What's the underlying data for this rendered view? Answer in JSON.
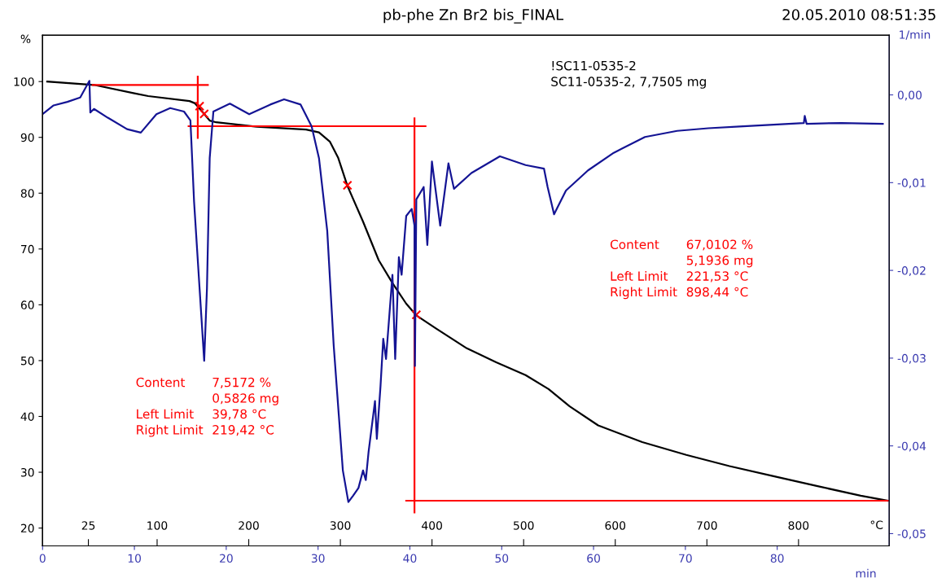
{
  "chart_data": {
    "type": "line",
    "title": "pb-phe Zn Br2 bis_FINAL",
    "xlabel": "min",
    "ylabel": "%",
    "y2label": "1/min",
    "x2label": "°C",
    "xlim": [
      0,
      92.2
    ],
    "xticks": [
      0,
      10,
      20,
      30,
      40,
      50,
      60,
      70,
      80
    ],
    "x2lim": [
      -25,
      899
    ],
    "x2ticks": [
      25,
      100,
      200,
      300,
      400,
      500,
      600,
      700,
      800
    ],
    "ylim": [
      16.8,
      108.3
    ],
    "yticks": [
      20,
      30,
      40,
      50,
      60,
      70,
      80,
      90,
      100
    ],
    "y2lim": [
      -0.0514,
      0.0068
    ],
    "y2ticks": [
      {
        "value": 0,
        "label": "0,00"
      },
      {
        "value": -0.01,
        "label": "-0,01"
      },
      {
        "value": -0.02,
        "label": "-0,02"
      },
      {
        "value": -0.03,
        "label": "-0,03"
      },
      {
        "value": -0.04,
        "label": "-0,04"
      },
      {
        "value": -0.05,
        "label": "-0,05"
      }
    ],
    "grid": false,
    "legend": false,
    "line_style": "solid",
    "series": [
      {
        "color": "#000000",
        "x": [
          0.5,
          5.6,
          10.0,
          11.5,
          16.0,
          16.6,
          17.4,
          18.2,
          18.9,
          23.3,
          28.7,
          30.1,
          31.3,
          32.2,
          33.2,
          34.9,
          36.6,
          38.1,
          39.6,
          40.7,
          42.8,
          46.2,
          49.4,
          52.6,
          55.1,
          57.4,
          60.5,
          65.3,
          70.1,
          74.8,
          79.6,
          84.4,
          89.1,
          92.0
        ],
        "values": [
          100.0,
          99.4,
          97.9,
          97.4,
          96.5,
          96.1,
          94.6,
          93.0,
          92.7,
          91.9,
          91.4,
          90.9,
          89.2,
          86.3,
          81.3,
          74.9,
          68.0,
          63.9,
          60.2,
          58.1,
          55.8,
          52.2,
          49.7,
          47.4,
          44.9,
          41.8,
          38.4,
          35.4,
          33.1,
          31.1,
          29.3,
          27.5,
          25.8,
          24.9
        ]
      },
      {
        "type": "line",
        "axis": "y2",
        "color": "#141494",
        "x": [
          0.0,
          1.2,
          2.7,
          4.1,
          5.1,
          5.2,
          5.6,
          7.1,
          9.2,
          10.7,
          12.4,
          13.9,
          15.4,
          16.1,
          16.5,
          17.1,
          17.6,
          17.9,
          18.2,
          18.6,
          20.4,
          22.5,
          24.8,
          26.3,
          28.1,
          29.3,
          30.1,
          31.0,
          31.7,
          32.7,
          33.3,
          33.8,
          34.4,
          34.9,
          35.2,
          35.5,
          36.2,
          36.4,
          36.8,
          37.1,
          37.4,
          38.1,
          38.4,
          38.8,
          39.1,
          39.6,
          40.2,
          40.5,
          40.55,
          40.7,
          41.5,
          41.9,
          42.4,
          43.3,
          44.2,
          44.8,
          46.7,
          49.8,
          52.6,
          54.6,
          55.0,
          55.7,
          57.0,
          59.4,
          62.2,
          65.6,
          69.1,
          72.5,
          75.9,
          82.9,
          83.0,
          83.2,
          87.0,
          91.5
        ],
        "values": [
          -0.0022,
          -0.0012,
          -0.0008,
          -0.0003,
          0.0016,
          -0.002,
          -0.0016,
          -0.0026,
          -0.0039,
          -0.0043,
          -0.0022,
          -0.0015,
          -0.0019,
          -0.0029,
          -0.0122,
          -0.0221,
          -0.0303,
          -0.0221,
          -0.0072,
          -0.0019,
          -0.001,
          -0.0022,
          -0.0011,
          -0.0005,
          -0.0011,
          -0.0036,
          -0.0072,
          -0.0155,
          -0.0285,
          -0.0428,
          -0.0464,
          -0.0457,
          -0.0448,
          -0.0428,
          -0.0439,
          -0.0407,
          -0.0349,
          -0.0392,
          -0.0332,
          -0.0278,
          -0.0301,
          -0.0205,
          -0.0301,
          -0.0185,
          -0.0205,
          -0.0138,
          -0.013,
          -0.0149,
          -0.0309,
          -0.0119,
          -0.0105,
          -0.0171,
          -0.0076,
          -0.0149,
          -0.0078,
          -0.0107,
          -0.0089,
          -0.007,
          -0.008,
          -0.0084,
          -0.0105,
          -0.0136,
          -0.0109,
          -0.0086,
          -0.0066,
          -0.0048,
          -0.0041,
          -0.0038,
          -0.0036,
          -0.0032,
          -0.0024,
          -0.0033,
          -0.0032,
          -0.0033
        ]
      },
      {
        "type": "line",
        "color": "#ff0000",
        "x": [
          5.45,
          18.0
        ],
        "values": [
          99.4,
          99.4
        ]
      },
      {
        "type": "line",
        "color": "#ff0000",
        "x": [
          16.9,
          16.9
        ],
        "values": [
          100.9,
          89.9
        ]
      },
      {
        "type": "line",
        "color": "#ff0000",
        "x": [
          15.9,
          41.7
        ],
        "values": [
          92.0,
          92.0
        ]
      },
      {
        "type": "line",
        "color": "#ff0000",
        "x": [
          40.5,
          40.5
        ],
        "values": [
          93.4,
          22.8
        ]
      },
      {
        "type": "line",
        "color": "#ff0000",
        "x": [
          39.6,
          92.2
        ],
        "values": [
          24.9,
          24.9
        ]
      },
      {
        "type": "scatter",
        "color": "#ff0000",
        "marker": "cross",
        "x": [
          17.1,
          17.6,
          33.2,
          40.7
        ],
        "values": [
          95.6,
          94.2,
          81.4,
          58.2
        ]
      }
    ],
    "annotations": [
      "20.05.2010 08:51:35",
      "!SC11-0535-2\nSC11-0535-2, 7,7505 mg",
      "Content\n\nLeft Limit\nRight Limit",
      "7,5172 %\n0,5826 mg\n39,78 °C\n219,42 °C",
      "Content\n\nLeft Limit\nRight Limit",
      "67,0102 %\n5,1936 mg\n221,53 °C\n898,44 °C"
    ]
  }
}
